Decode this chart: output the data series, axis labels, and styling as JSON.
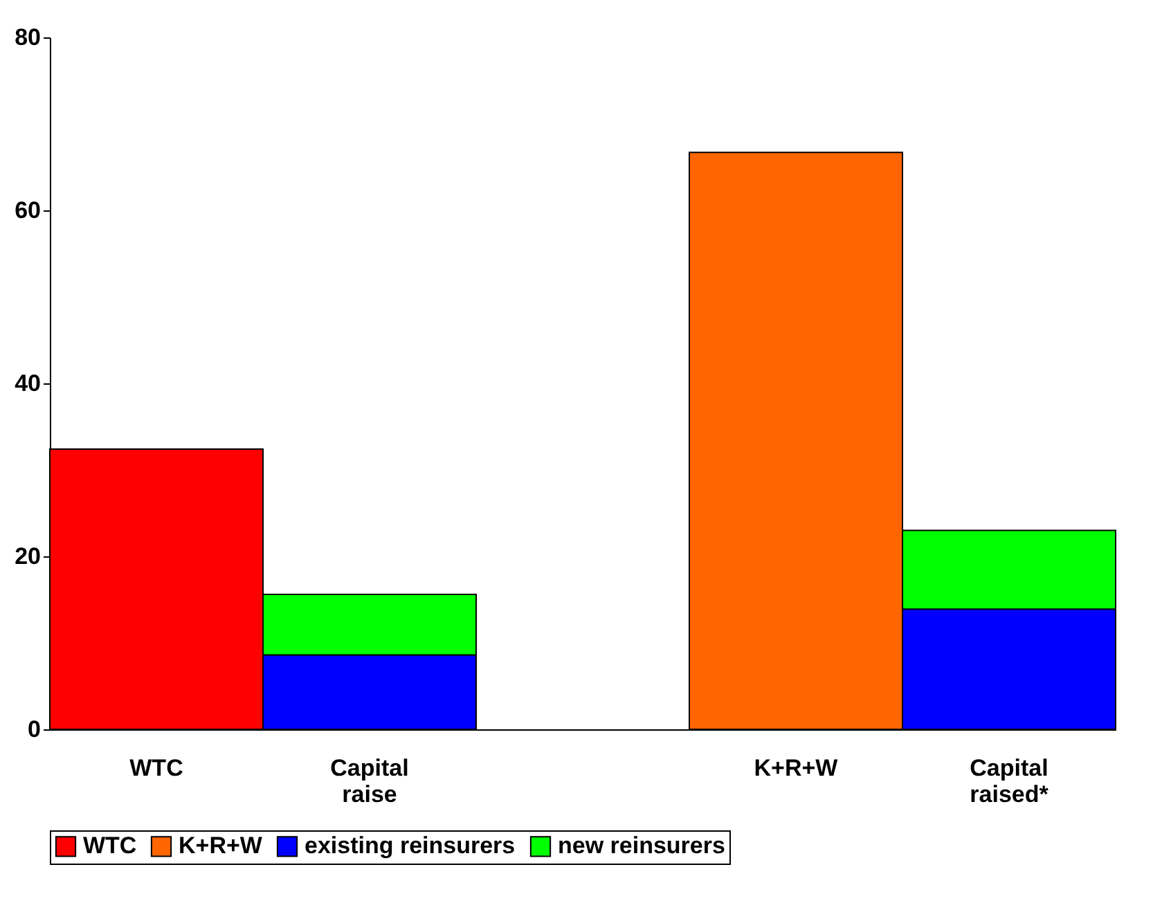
{
  "chart_data": {
    "type": "bar",
    "stacked": true,
    "categories": [
      "WTC",
      "Capital raise",
      null,
      "K+R+W",
      "Capital raised*"
    ],
    "series": [
      {
        "name": "WTC",
        "color": "#ff0000",
        "values": [
          32.4,
          null,
          null,
          null,
          null
        ]
      },
      {
        "name": "K+R+W",
        "color": "#ff6600",
        "values": [
          null,
          null,
          null,
          66.7,
          null
        ]
      },
      {
        "name": "existing reinsurers",
        "color": "#0000ff",
        "values": [
          null,
          8.6,
          null,
          null,
          13.9
        ]
      },
      {
        "name": "new reinsurers",
        "color": "#00ff00",
        "values": [
          null,
          7.0,
          null,
          null,
          9.1
        ]
      }
    ],
    "ylim": [
      0,
      80
    ],
    "yticks": [
      0,
      20,
      40,
      60,
      80
    ],
    "grid": false,
    "legend": "bottom"
  }
}
